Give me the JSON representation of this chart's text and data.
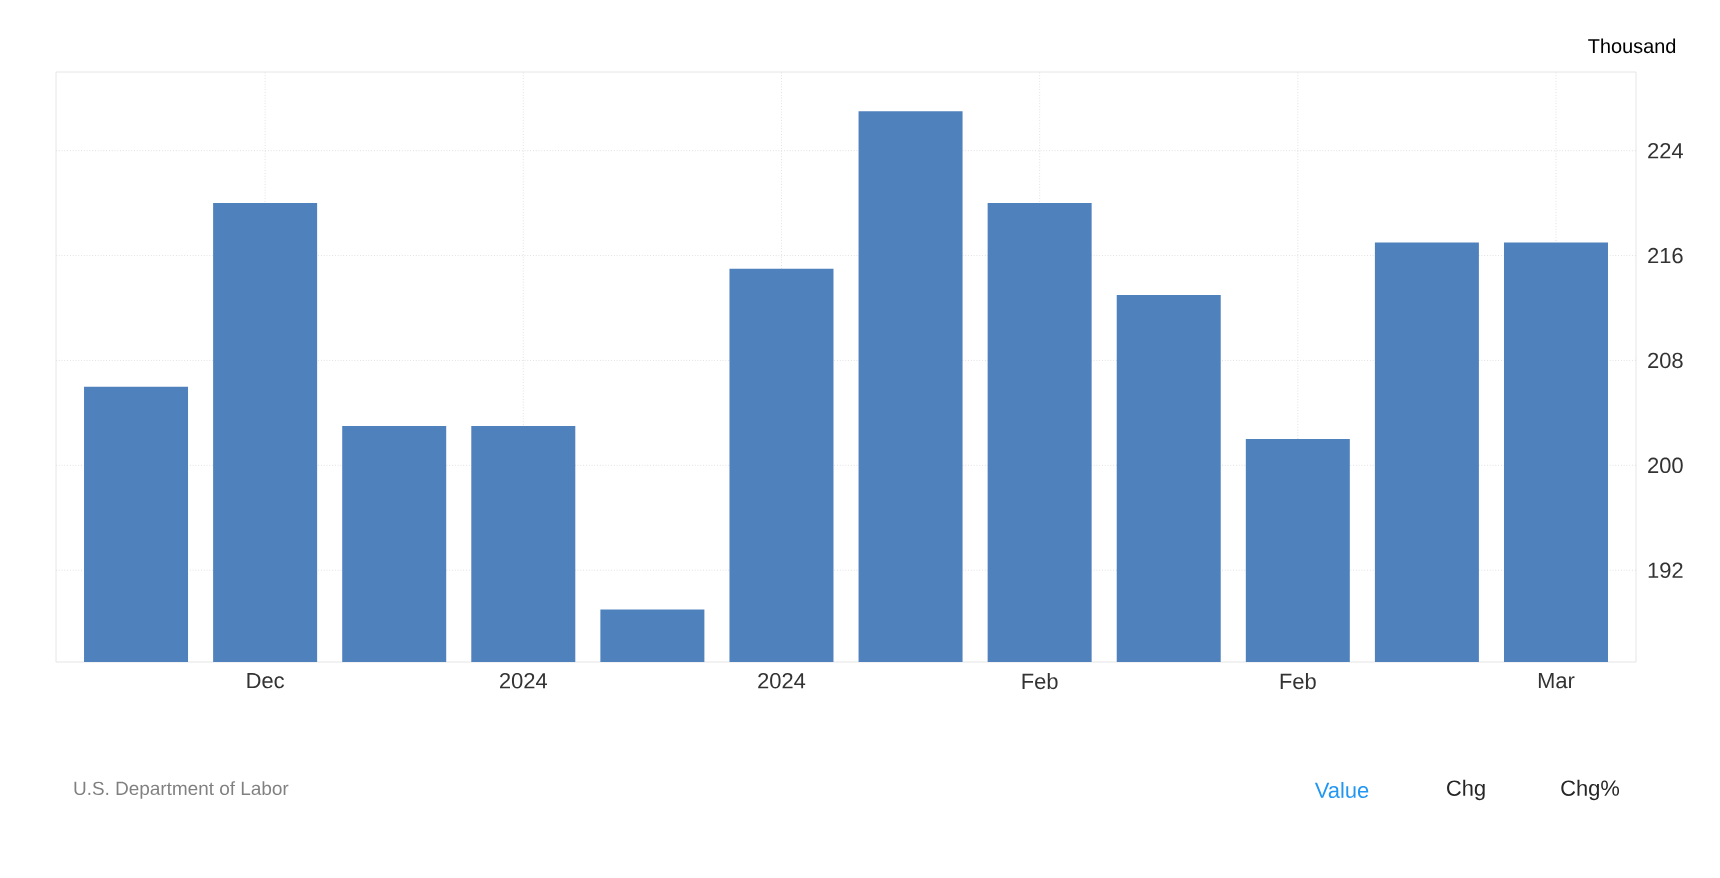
{
  "chart_data": {
    "type": "bar",
    "categories": [
      null,
      "Dec",
      null,
      "2024",
      null,
      "2024",
      null,
      "Feb",
      null,
      "Feb",
      null,
      "Mar"
    ],
    "values": [
      206,
      220,
      203,
      203,
      189,
      215,
      227,
      220,
      213,
      202,
      217,
      217
    ],
    "color": "#4f81bd",
    "ylabel": "Thousand",
    "ylim": [
      185,
      230
    ],
    "yticks": [
      192,
      200,
      208,
      216,
      224
    ],
    "grid": true,
    "annotations": [
      "U.S. Department of Labor",
      "Value",
      "Chg",
      "Chg%"
    ]
  }
}
